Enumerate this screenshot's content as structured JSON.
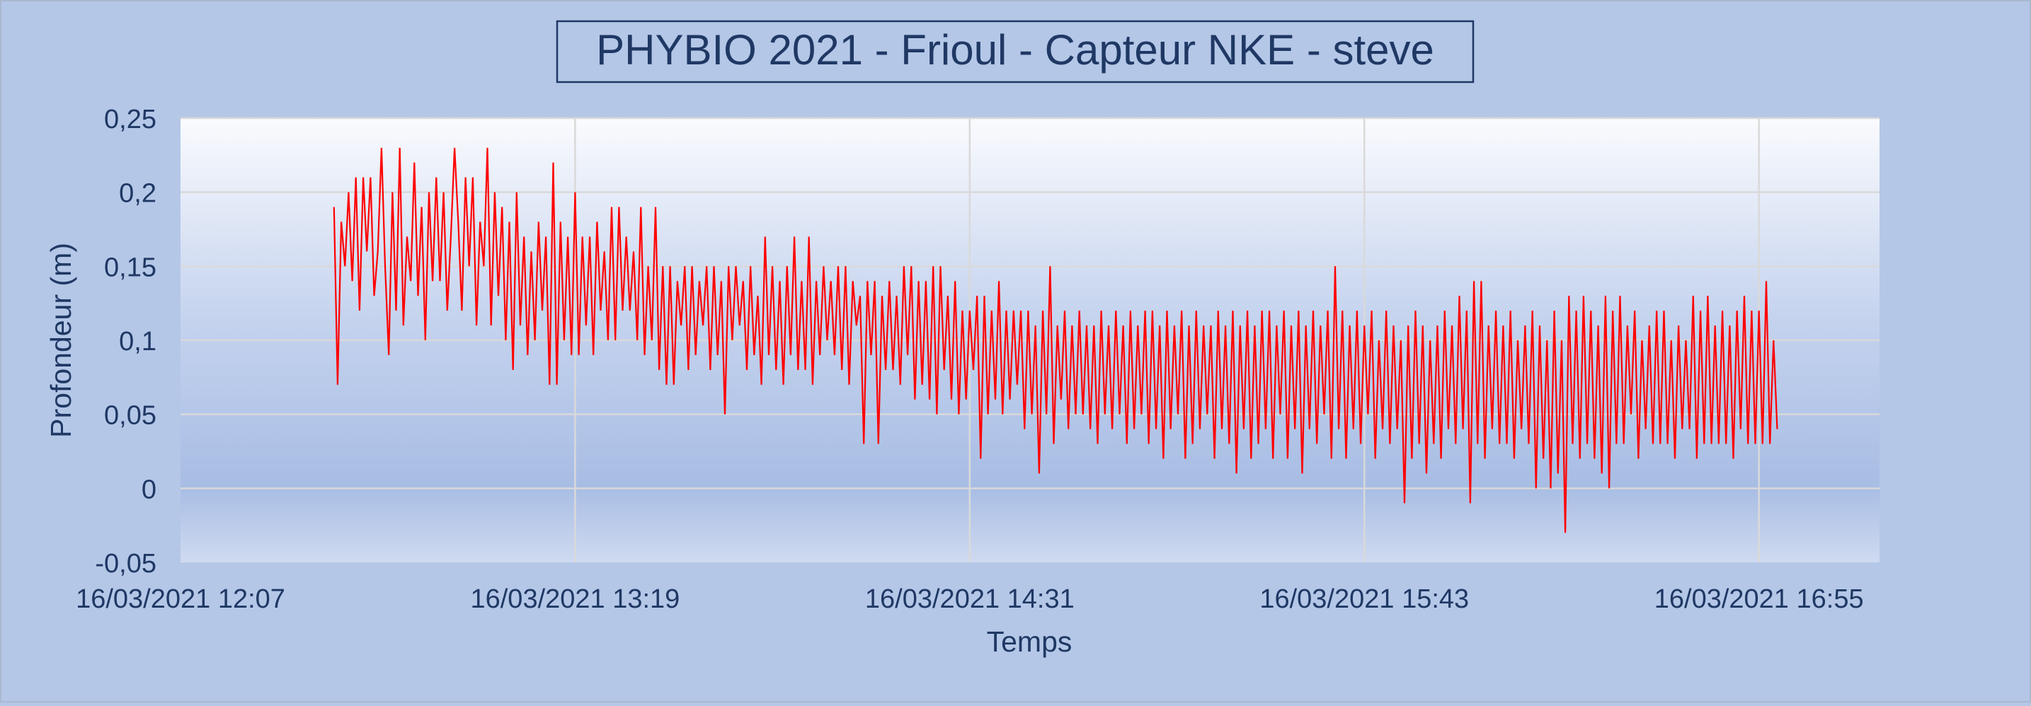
{
  "chart_data": {
    "type": "line",
    "title": "PHYBIO 2021 - Frioul - Capteur NKE - steve",
    "xlabel": "Temps",
    "ylabel": "Profondeur (m)",
    "x_ticks": [
      "16/03/2021 12:07",
      "16/03/2021 13:19",
      "16/03/2021 14:31",
      "16/03/2021 15:43",
      "16/03/2021 16:55"
    ],
    "y_ticks": [
      "-0,05",
      "0",
      "0,05",
      "0,1",
      "0,15",
      "0,2",
      "0,25"
    ],
    "ylim": [
      -0.05,
      0.25
    ],
    "xlim": [
      "16/03/2021 12:07",
      "16/03/2021 17:17"
    ],
    "grid": true,
    "legend": "none",
    "series": [
      {
        "color": "#ff0000",
        "x_start": "16/03/2021 12:35",
        "x_end": "16/03/2021 17:14",
        "sample_interval_seconds": 40,
        "values": [
          0.19,
          0.07,
          0.18,
          0.15,
          0.2,
          0.14,
          0.21,
          0.12,
          0.21,
          0.16,
          0.21,
          0.13,
          0.16,
          0.23,
          0.15,
          0.09,
          0.2,
          0.12,
          0.23,
          0.11,
          0.17,
          0.14,
          0.22,
          0.13,
          0.19,
          0.1,
          0.2,
          0.14,
          0.21,
          0.14,
          0.2,
          0.12,
          0.17,
          0.23,
          0.18,
          0.12,
          0.21,
          0.15,
          0.21,
          0.11,
          0.18,
          0.15,
          0.23,
          0.11,
          0.2,
          0.13,
          0.19,
          0.1,
          0.18,
          0.08,
          0.2,
          0.11,
          0.17,
          0.09,
          0.16,
          0.1,
          0.18,
          0.12,
          0.17,
          0.07,
          0.22,
          0.07,
          0.18,
          0.1,
          0.17,
          0.09,
          0.2,
          0.09,
          0.17,
          0.11,
          0.17,
          0.09,
          0.18,
          0.12,
          0.16,
          0.1,
          0.19,
          0.1,
          0.19,
          0.12,
          0.17,
          0.12,
          0.16,
          0.1,
          0.19,
          0.09,
          0.15,
          0.1,
          0.19,
          0.08,
          0.15,
          0.07,
          0.15,
          0.07,
          0.14,
          0.11,
          0.15,
          0.08,
          0.15,
          0.09,
          0.14,
          0.11,
          0.15,
          0.08,
          0.15,
          0.09,
          0.14,
          0.05,
          0.15,
          0.1,
          0.15,
          0.11,
          0.14,
          0.08,
          0.15,
          0.09,
          0.13,
          0.07,
          0.17,
          0.09,
          0.15,
          0.08,
          0.14,
          0.07,
          0.15,
          0.09,
          0.17,
          0.08,
          0.14,
          0.08,
          0.17,
          0.07,
          0.14,
          0.09,
          0.15,
          0.1,
          0.14,
          0.09,
          0.15,
          0.08,
          0.15,
          0.07,
          0.14,
          0.11,
          0.13,
          0.03,
          0.14,
          0.09,
          0.14,
          0.03,
          0.13,
          0.08,
          0.14,
          0.08,
          0.13,
          0.07,
          0.15,
          0.09,
          0.15,
          0.06,
          0.14,
          0.07,
          0.14,
          0.06,
          0.15,
          0.05,
          0.15,
          0.08,
          0.13,
          0.06,
          0.14,
          0.05,
          0.12,
          0.06,
          0.12,
          0.08,
          0.13,
          0.02,
          0.13,
          0.05,
          0.12,
          0.06,
          0.14,
          0.05,
          0.12,
          0.06,
          0.12,
          0.07,
          0.12,
          0.04,
          0.12,
          0.05,
          0.11,
          0.01,
          0.12,
          0.05,
          0.15,
          0.03,
          0.11,
          0.06,
          0.12,
          0.04,
          0.11,
          0.05,
          0.12,
          0.05,
          0.11,
          0.04,
          0.11,
          0.03,
          0.12,
          0.05,
          0.11,
          0.04,
          0.12,
          0.05,
          0.11,
          0.03,
          0.12,
          0.04,
          0.11,
          0.05,
          0.12,
          0.03,
          0.12,
          0.04,
          0.11,
          0.02,
          0.12,
          0.04,
          0.11,
          0.05,
          0.12,
          0.02,
          0.11,
          0.03,
          0.12,
          0.04,
          0.11,
          0.05,
          0.11,
          0.02,
          0.12,
          0.04,
          0.11,
          0.03,
          0.12,
          0.01,
          0.11,
          0.04,
          0.12,
          0.02,
          0.11,
          0.03,
          0.12,
          0.04,
          0.12,
          0.02,
          0.11,
          0.05,
          0.12,
          0.02,
          0.11,
          0.04,
          0.12,
          0.01,
          0.11,
          0.04,
          0.12,
          0.03,
          0.11,
          0.05,
          0.12,
          0.02,
          0.15,
          0.04,
          0.12,
          0.02,
          0.11,
          0.04,
          0.12,
          0.03,
          0.11,
          0.05,
          0.12,
          0.02,
          0.1,
          0.04,
          0.12,
          0.03,
          0.11,
          0.04,
          0.1,
          -0.01,
          0.11,
          0.02,
          0.12,
          0.03,
          0.11,
          0.01,
          0.1,
          0.03,
          0.11,
          0.02,
          0.12,
          0.04,
          0.11,
          0.03,
          0.13,
          0.04,
          0.12,
          -0.01,
          0.14,
          0.03,
          0.14,
          0.02,
          0.11,
          0.04,
          0.12,
          0.03,
          0.11,
          0.03,
          0.12,
          0.02,
          0.1,
          0.04,
          0.11,
          0.03,
          0.12,
          0,
          0.11,
          0.02,
          0.1,
          0,
          0.12,
          0.01,
          0.1,
          -0.03,
          0.13,
          0.03,
          0.12,
          0.02,
          0.13,
          0.03,
          0.12,
          0.02,
          0.11,
          0.01,
          0.13,
          0,
          0.12,
          0.03,
          0.13,
          0.03,
          0.11,
          0.05,
          0.12,
          0.02,
          0.1,
          0.04,
          0.11,
          0.03,
          0.12,
          0.03,
          0.12,
          0.03,
          0.1,
          0.02,
          0.11,
          0.04,
          0.1,
          0.04,
          0.13,
          0.02,
          0.12,
          0.03,
          0.13,
          0.03,
          0.11,
          0.03,
          0.12,
          0.03,
          0.11,
          0.02,
          0.12,
          0.04,
          0.13,
          0.03,
          0.12,
          0.03,
          0.12,
          0.03,
          0.14,
          0.03,
          0.1,
          0.04
        ]
      }
    ]
  }
}
